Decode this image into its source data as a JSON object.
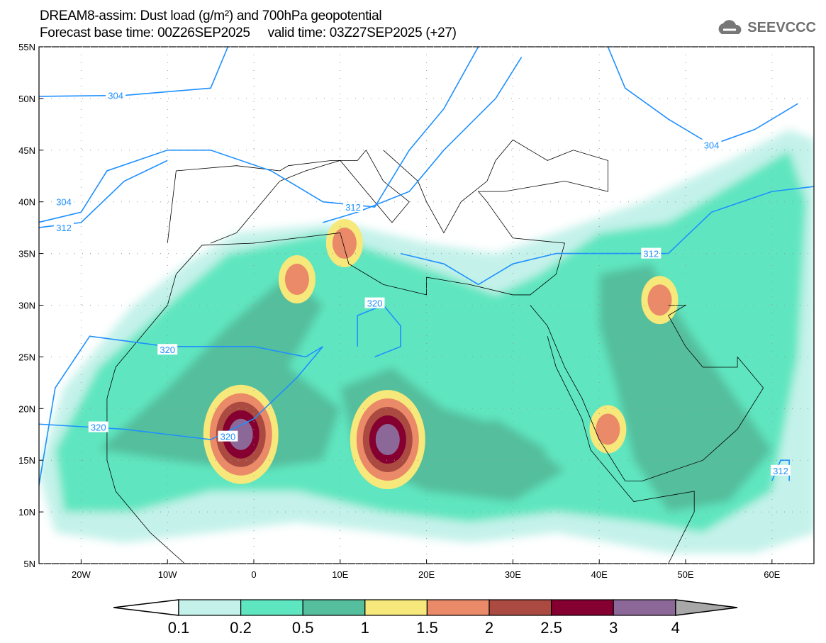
{
  "title_line1": "DREAM8-assim: Dust load (g/m²) and 700hPa geopotential",
  "title_line2": "Forecast base time: 00Z26SEP2025     valid time: 03Z27SEP2025 (+27)",
  "logo_text": "SEEVCCC",
  "chart_data": {
    "type": "map",
    "lon_range": [
      -25,
      65
    ],
    "lat_range": [
      5,
      55
    ],
    "lat_ticks": [
      "55N",
      "50N",
      "45N",
      "40N",
      "35N",
      "30N",
      "25N",
      "20N",
      "15N",
      "10N",
      "5N"
    ],
    "lat_values": [
      55,
      50,
      45,
      40,
      35,
      30,
      25,
      20,
      15,
      10,
      5
    ],
    "lon_ticks": [
      "20W",
      "10W",
      "0",
      "10E",
      "20E",
      "30E",
      "40E",
      "50E",
      "60E"
    ],
    "lon_values": [
      -20,
      -10,
      0,
      10,
      20,
      30,
      40,
      50,
      60
    ],
    "colorbar": {
      "levels": [
        "0.1",
        "0.2",
        "0.5",
        "1",
        "1.5",
        "2",
        "2.5",
        "3",
        "4"
      ],
      "colors": [
        "#c4f2ea",
        "#5ee6c0",
        "#55be9c",
        "#f6e87a",
        "#ea8a68",
        "#aa4a40",
        "#850030",
        "#8c6898"
      ],
      "over_color": "#a8a8a8"
    },
    "contour_labels": [
      {
        "text": "304",
        "lon": -16,
        "lat": 50.3
      },
      {
        "text": "304",
        "lon": -22,
        "lat": 40
      },
      {
        "text": "312",
        "lon": -22,
        "lat": 37.5
      },
      {
        "text": "312",
        "lon": 11.5,
        "lat": 39.5
      },
      {
        "text": "304",
        "lon": 53,
        "lat": 45.5
      },
      {
        "text": "312",
        "lon": 46,
        "lat": 35
      },
      {
        "text": "320",
        "lon": -10,
        "lat": 25.7
      },
      {
        "text": "320",
        "lon": 14,
        "lat": 30.2
      },
      {
        "text": "320",
        "lon": -18,
        "lat": 18.2
      },
      {
        "text": "320",
        "lon": -3,
        "lat": 17.3
      },
      {
        "text": "312",
        "lon": 61,
        "lat": 14
      }
    ],
    "dust_hotspots": [
      {
        "lon": -1.5,
        "lat": 17.5,
        "max": 3
      },
      {
        "lon": 15.5,
        "lat": 17,
        "max": 3
      },
      {
        "lon": 47,
        "lat": 30.5,
        "max": 1.5
      },
      {
        "lon": 41,
        "lat": 18,
        "max": 1.5
      },
      {
        "lon": 5,
        "lat": 32.5,
        "max": 1.5
      },
      {
        "lon": 10.5,
        "lat": 36,
        "max": 1.5
      }
    ]
  }
}
